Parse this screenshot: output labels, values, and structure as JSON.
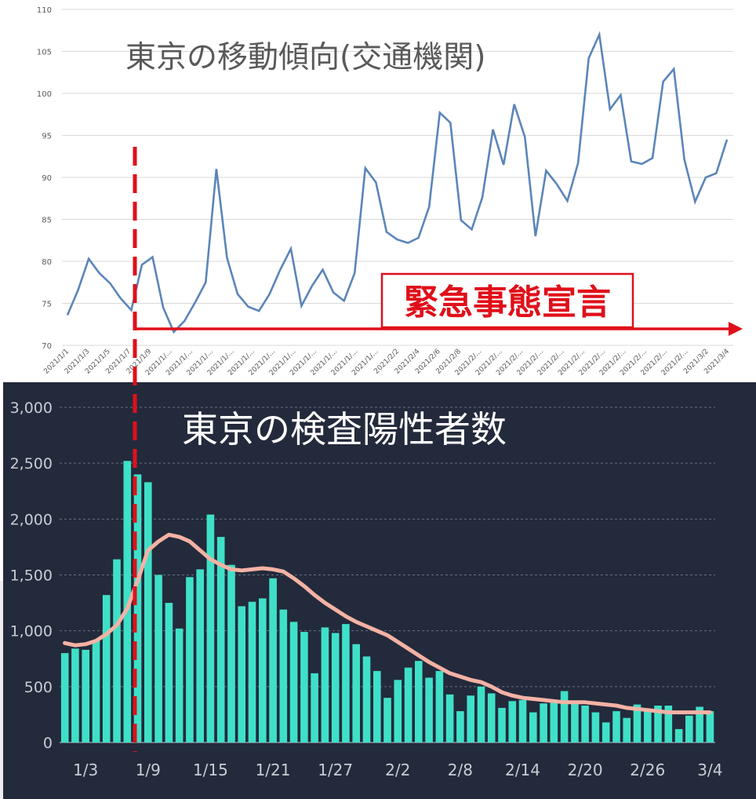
{
  "colors": {
    "mobility_line": "#5b85b9",
    "declaration_red": "#e0101a",
    "bars": "#3fe0c8",
    "avg_line": "#f4b2a4",
    "dark_bg": "#232a3b"
  },
  "chart_data": [
    {
      "type": "line",
      "title": "東京の移動傾向(交通機関)",
      "xlabel": "",
      "ylabel": "",
      "ylim": [
        70,
        110
      ],
      "yticks": [
        "110",
        "105",
        "100",
        "95",
        "90",
        "85",
        "80",
        "75",
        "70"
      ],
      "xtick_labels": [
        "2021/1/1",
        "2021/1/3",
        "2021/1/5",
        "2021/1/7",
        "2021/1/9",
        "2021/1/...",
        "2021/1/...",
        "2021/1/...",
        "2021/1/...",
        "2021/1/...",
        "2021/1/...",
        "2021/1/...",
        "2021/1/...",
        "2021/1/...",
        "2021/1/...",
        "2021/1/...",
        "2021/2/2",
        "2021/2/4",
        "2021/2/6",
        "2021/2/8",
        "2021/2/...",
        "2021/2/...",
        "2021/2/...",
        "2021/2/...",
        "2021/2/...",
        "2021/2/...",
        "2021/2/...",
        "2021/2/...",
        "2021/2/...",
        "2021/2/...",
        "2021/2/...",
        "2021/3/2",
        "2021/3/4"
      ],
      "grid": true,
      "series": [
        {
          "values": [
            73.6,
            76.6,
            80.3,
            78.6,
            77.4,
            75.6,
            74.2,
            79.6,
            80.5,
            74.5,
            71.6,
            72.9,
            75.1,
            77.5,
            91.0,
            80.4,
            76.1,
            74.6,
            74.1,
            76.1,
            79.0,
            81.5,
            74.7,
            77.1,
            79.0,
            76.3,
            75.3,
            78.6,
            91.1,
            89.4,
            83.5,
            82.6,
            82.2,
            82.8,
            86.5,
            97.7,
            96.5,
            84.9,
            83.8,
            87.6,
            95.7,
            91.5,
            98.7,
            94.8,
            83.0,
            90.8,
            89.2,
            87.2,
            91.7,
            104.2,
            107.0,
            98.1,
            99.8,
            91.9,
            91.6,
            92.3,
            101.4,
            102.9,
            92.1,
            87.1,
            90.0,
            90.5,
            94.5
          ]
        }
      ],
      "annotations": {
        "declaration_label": "緊急事態宣言"
      }
    },
    {
      "type": "bar",
      "title": "東京の検査陽性者数",
      "xlabel": "",
      "ylabel": "",
      "ylim": [
        0,
        3000
      ],
      "yticks": [
        "3,000",
        "2,500",
        "2,000",
        "1,500",
        "1,000",
        "500",
        "0"
      ],
      "xtick_labels": [
        "1/3",
        "1/9",
        "1/15",
        "1/21",
        "1/27",
        "2/2",
        "2/8",
        "2/14",
        "2/20",
        "2/26",
        "3/4"
      ],
      "grid": true,
      "series": [
        {
          "values": [
            800,
            840,
            830,
            910,
            1320,
            1640,
            2520,
            2400,
            2330,
            1500,
            1250,
            1020,
            1480,
            1550,
            2040,
            1840,
            1590,
            1220,
            1260,
            1290,
            1470,
            1190,
            1080,
            990,
            620,
            1030,
            980,
            1060,
            880,
            770,
            640,
            400,
            560,
            670,
            730,
            580,
            640,
            430,
            280,
            420,
            500,
            440,
            310,
            370,
            380,
            270,
            350,
            360,
            460,
            370,
            330,
            270,
            180,
            280,
            220,
            340,
            300,
            330,
            330,
            120,
            240,
            320,
            280
          ]
        },
        {
          "values": [
            890,
            870,
            880,
            910,
            970,
            1050,
            1200,
            1450,
            1720,
            1800,
            1860,
            1840,
            1800,
            1720,
            1640,
            1590,
            1550,
            1540,
            1550,
            1560,
            1550,
            1530,
            1470,
            1400,
            1320,
            1250,
            1190,
            1130,
            1080,
            1040,
            1000,
            960,
            900,
            840,
            780,
            720,
            670,
            620,
            590,
            560,
            540,
            500,
            450,
            420,
            400,
            390,
            380,
            370,
            360,
            360,
            360,
            350,
            340,
            330,
            310,
            300,
            290,
            280,
            270,
            270,
            270,
            270,
            270
          ]
        }
      ]
    }
  ]
}
